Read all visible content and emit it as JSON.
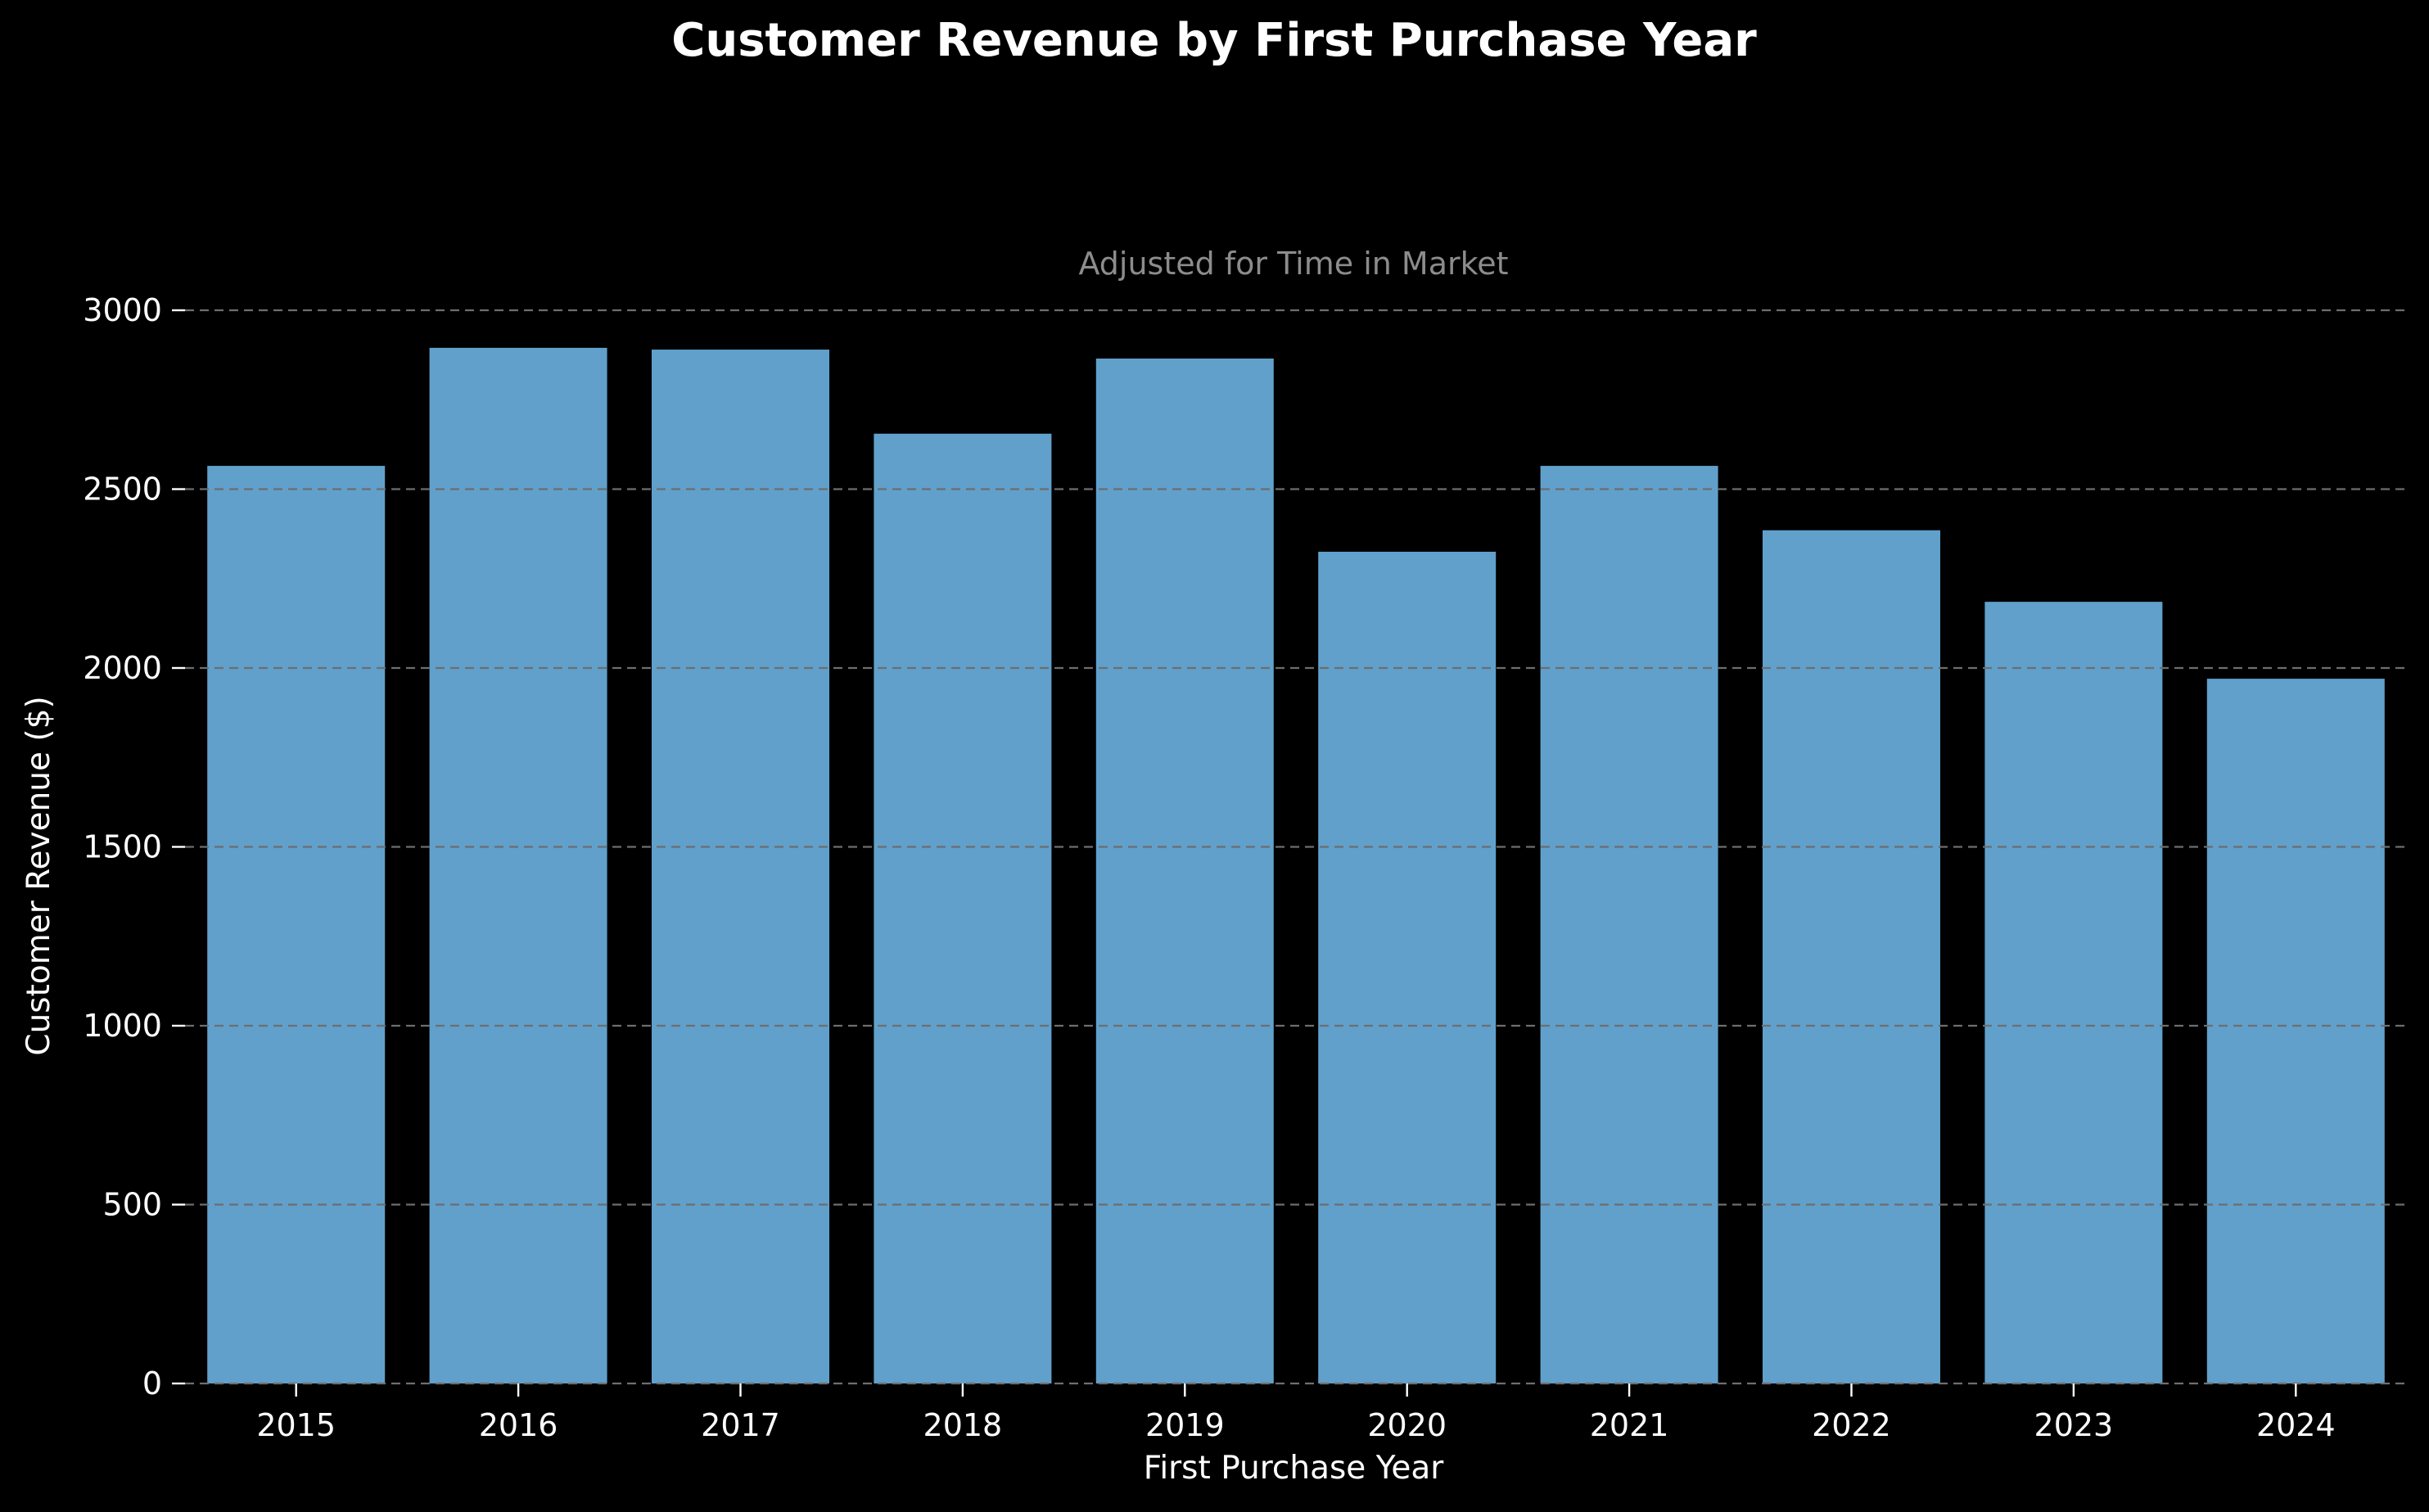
{
  "chart_data": {
    "type": "bar",
    "title": "Customer Revenue by First Purchase Year",
    "subtitle": "Adjusted for Time in Market",
    "xlabel": "First Purchase Year",
    "ylabel": "Customer Revenue ($)",
    "categories": [
      "2015",
      "2016",
      "2017",
      "2018",
      "2019",
      "2020",
      "2021",
      "2022",
      "2023",
      "2024"
    ],
    "values": [
      2565,
      2895,
      2890,
      2655,
      2865,
      2325,
      2565,
      2385,
      2185,
      1970
    ],
    "ylim": [
      0,
      3000
    ],
    "yticks": [
      0,
      500,
      1000,
      1500,
      2000,
      2500,
      3000
    ],
    "grid": true,
    "bar_color": "#61a0cb",
    "background_color": "#000000",
    "grid_color": "#6e6e6e"
  }
}
